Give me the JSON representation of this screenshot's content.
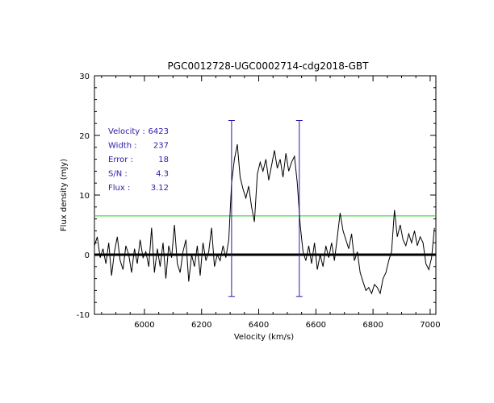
{
  "chart_data": {
    "type": "line",
    "title": "PGC0012728-UGC0002714-cdg2018-GBT",
    "xlabel": "Velocity (km/s)",
    "ylabel": "Flux density (mJy)",
    "xlim": [
      5825,
      7020
    ],
    "ylim": [
      -10,
      30
    ],
    "xticks": [
      6000,
      6200,
      6400,
      6600,
      6800,
      7000
    ],
    "yticks": [
      -10,
      0,
      10,
      20,
      30
    ],
    "annotations": [
      {
        "label": "Velocity :",
        "value": "6423"
      },
      {
        "label": "Width    :",
        "value": "237"
      },
      {
        "label": "Error    :",
        "value": "18"
      },
      {
        "label": "S/N      :",
        "value": "4.3"
      },
      {
        "label": "Flux     :",
        "value": "3.12"
      }
    ],
    "reference_lines": {
      "zero_level": 0,
      "threshold_level": 6.5,
      "threshold_color": "#22cc22",
      "window_markers_x": [
        6305,
        6542
      ],
      "marker_range_y": [
        -7,
        22.5
      ],
      "marker_color": "#2a1aa8"
    },
    "series": [
      {
        "color": "#000000",
        "x": [
          5825,
          5835,
          5845,
          5855,
          5865,
          5875,
          5885,
          5895,
          5905,
          5915,
          5925,
          5935,
          5945,
          5955,
          5965,
          5975,
          5985,
          5995,
          6005,
          6015,
          6025,
          6035,
          6045,
          6055,
          6065,
          6075,
          6085,
          6095,
          6105,
          6115,
          6125,
          6135,
          6145,
          6155,
          6165,
          6175,
          6185,
          6195,
          6205,
          6215,
          6225,
          6235,
          6245,
          6255,
          6265,
          6275,
          6285,
          6295,
          6305,
          6315,
          6325,
          6335,
          6345,
          6355,
          6365,
          6375,
          6385,
          6395,
          6405,
          6415,
          6425,
          6435,
          6445,
          6455,
          6465,
          6475,
          6485,
          6495,
          6505,
          6515,
          6525,
          6535,
          6545,
          6555,
          6565,
          6575,
          6585,
          6595,
          6605,
          6615,
          6625,
          6635,
          6645,
          6655,
          6665,
          6675,
          6685,
          6695,
          6705,
          6715,
          6725,
          6735,
          6745,
          6755,
          6765,
          6775,
          6785,
          6795,
          6805,
          6815,
          6825,
          6835,
          6845,
          6855,
          6865,
          6875,
          6885,
          6895,
          6905,
          6915,
          6925,
          6935,
          6945,
          6955,
          6965,
          6975,
          6985,
          6995,
          7005,
          7015
        ],
        "y": [
          1.5,
          3.0,
          -0.5,
          1.0,
          -1.5,
          2.0,
          -3.5,
          0.5,
          3.0,
          -1.0,
          -2.5,
          1.5,
          0.0,
          -3.0,
          1.0,
          -1.5,
          2.5,
          -0.5,
          0.5,
          -2.0,
          4.5,
          -3.0,
          1.0,
          -2.0,
          2.0,
          -4.0,
          1.5,
          -0.5,
          5.0,
          -1.5,
          -3.0,
          0.5,
          2.5,
          -4.5,
          0.0,
          -2.0,
          1.5,
          -3.5,
          2.0,
          -1.0,
          0.5,
          4.5,
          -2.0,
          0.0,
          -1.0,
          1.5,
          -0.5,
          2.5,
          12.0,
          16.0,
          18.5,
          13.0,
          11.0,
          9.5,
          11.5,
          8.0,
          5.5,
          13.5,
          15.5,
          14.0,
          16.0,
          12.5,
          15.0,
          17.5,
          14.5,
          16.0,
          13.0,
          17.0,
          14.0,
          15.5,
          16.5,
          12.0,
          5.0,
          0.5,
          -1.0,
          1.5,
          -1.5,
          2.0,
          -2.5,
          0.0,
          -2.0,
          1.5,
          -0.5,
          2.0,
          -1.0,
          3.0,
          7.0,
          4.0,
          2.5,
          1.0,
          3.5,
          -1.0,
          0.5,
          -3.0,
          -4.5,
          -6.0,
          -5.5,
          -6.5,
          -5.0,
          -5.5,
          -6.5,
          -4.0,
          -3.0,
          -1.0,
          0.5,
          7.5,
          3.0,
          5.0,
          2.5,
          1.5,
          3.5,
          2.0,
          4.0,
          1.5,
          3.0,
          2.0,
          -1.5,
          -2.5,
          -0.5,
          4.5
        ]
      }
    ]
  }
}
